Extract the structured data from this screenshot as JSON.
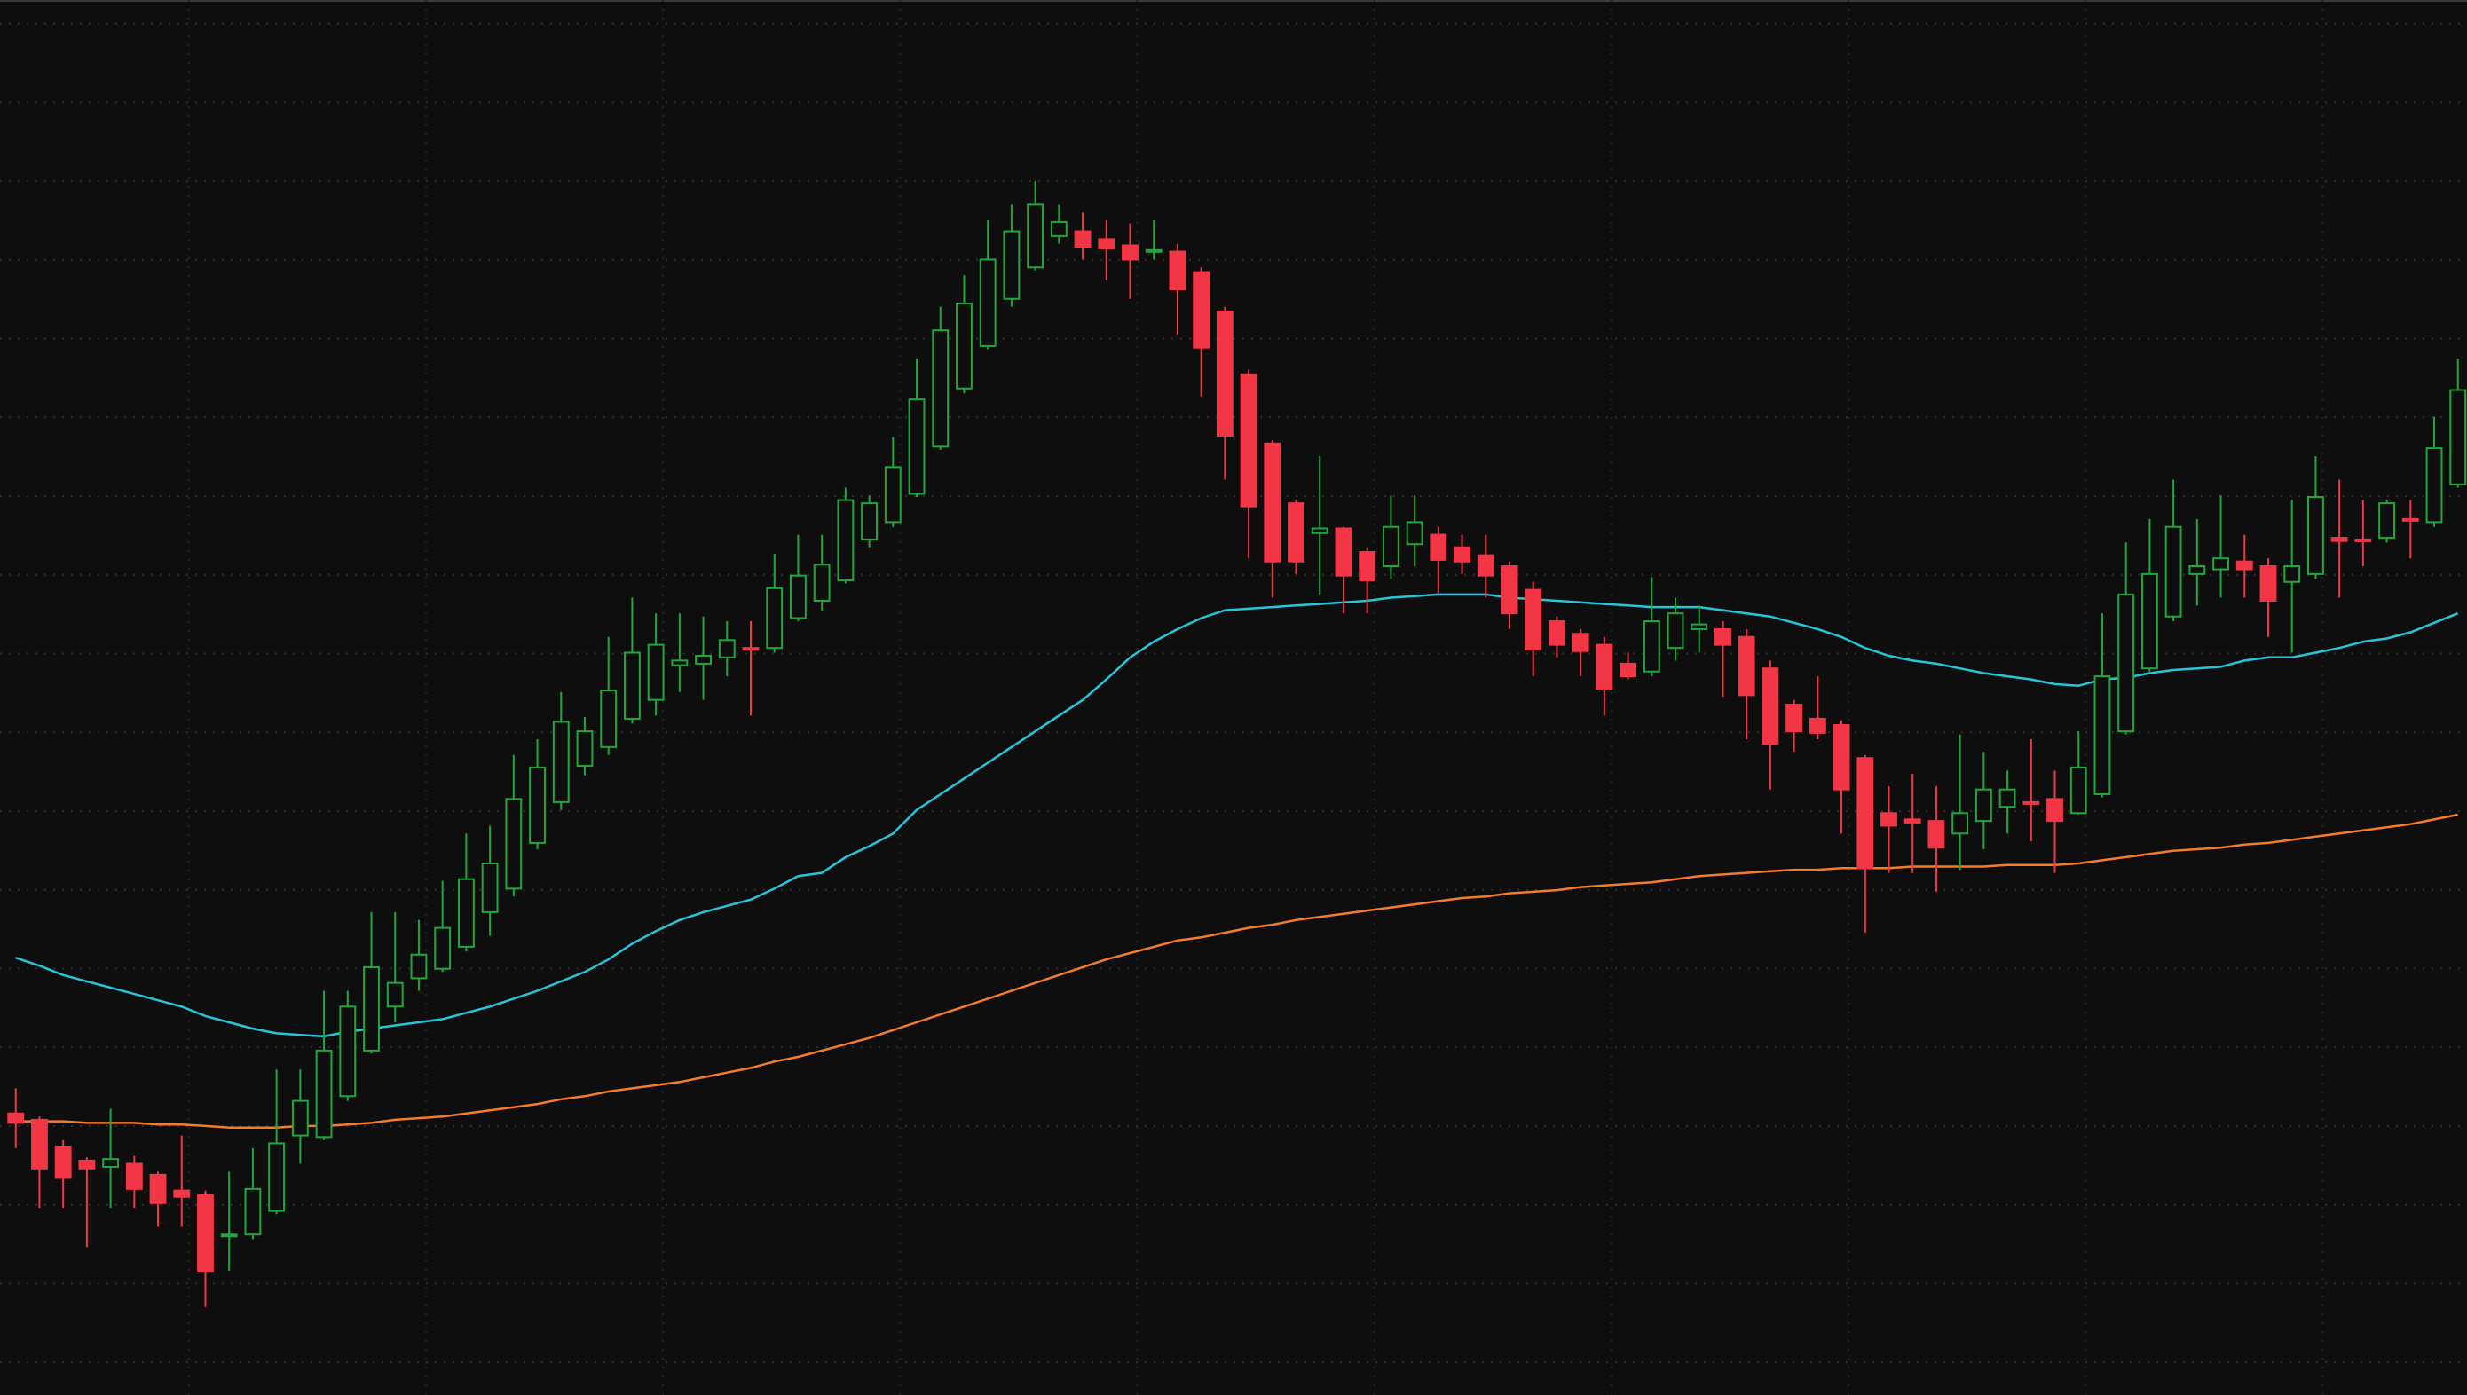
{
  "chart_data": {
    "type": "candlestick",
    "open": [
      179,
      175,
      158,
      149,
      145,
      147,
      140,
      130,
      127,
      101,
      102,
      117,
      165,
      164,
      190,
      219,
      247,
      265,
      271,
      285,
      307,
      322,
      351,
      377,
      400,
      412,
      430,
      442,
      464,
      465,
      469,
      475,
      475,
      494,
      505,
      518,
      544,
      555,
      573,
      603,
      640,
      667,
      697,
      717,
      737,
      740,
      735,
      731,
      727,
      727,
      714,
      689,
      649,
      605,
      567,
      548,
      551,
      536,
      527,
      541,
      547,
      539,
      534,
      527,
      512,
      492,
      484,
      477,
      465,
      460,
      475,
      487,
      487,
      482,
      462,
      439,
      430,
      426,
      405,
      370,
      366,
      365,
      357,
      365,
      374,
      377,
      379,
      370,
      382,
      422,
      462,
      495,
      522,
      525,
      530,
      527,
      517,
      522,
      545,
      544,
      545,
      557,
      555,
      579
    ],
    "high": [
      195,
      177,
      162,
      151,
      182,
      152,
      142,
      165,
      130,
      142,
      157,
      207,
      207,
      257,
      257,
      307,
      307,
      302,
      327,
      357,
      362,
      407,
      417,
      447,
      431,
      482,
      507,
      497,
      497,
      495,
      492,
      492,
      535,
      547,
      547,
      577,
      572,
      609,
      659,
      692,
      712,
      747,
      757,
      772,
      757,
      752,
      747,
      745,
      747,
      732,
      717,
      692,
      652,
      607,
      569,
      597,
      552,
      539,
      572,
      572,
      552,
      547,
      547,
      530,
      517,
      495,
      487,
      482,
      472,
      520,
      507,
      502,
      492,
      487,
      467,
      442,
      457,
      429,
      407,
      387,
      395,
      387,
      420,
      409,
      397,
      417,
      397,
      422,
      497,
      542,
      557,
      582,
      557,
      572,
      547,
      532,
      569,
      597,
      582,
      569,
      569,
      569,
      622,
      659
    ],
    "low": [
      157,
      119,
      119,
      94,
      119,
      119,
      107,
      107,
      56,
      79,
      99,
      115,
      147,
      162,
      187,
      217,
      237,
      257,
      269,
      282,
      292,
      317,
      347,
      372,
      394,
      407,
      427,
      432,
      447,
      442,
      457,
      432,
      472,
      492,
      499,
      516,
      539,
      552,
      571,
      601,
      637,
      665,
      692,
      715,
      732,
      722,
      709,
      697,
      722,
      674,
      635,
      582,
      532,
      507,
      522,
      509,
      497,
      497,
      519,
      527,
      510,
      522,
      507,
      487,
      457,
      469,
      457,
      432,
      455,
      457,
      467,
      472,
      444,
      417,
      385,
      409,
      417,
      357,
      294,
      332,
      332,
      320,
      334,
      347,
      357,
      352,
      332,
      369,
      380,
      420,
      460,
      492,
      502,
      507,
      507,
      482,
      472,
      519,
      507,
      527,
      542,
      532,
      552,
      577
    ],
    "close": [
      173,
      144,
      138,
      144,
      150,
      131,
      122,
      126,
      79,
      102,
      131,
      160,
      187,
      219,
      247,
      272,
      262,
      280,
      297,
      328,
      338,
      379,
      399,
      428,
      422,
      448,
      472,
      477,
      467,
      470,
      480,
      474,
      513,
      521,
      528,
      569,
      567,
      590,
      633,
      677,
      694,
      722,
      740,
      757,
      746,
      730,
      729,
      722,
      728,
      703,
      666,
      610,
      565,
      530,
      530,
      551,
      521,
      518,
      552,
      555,
      531,
      530,
      521,
      497,
      474,
      477,
      473,
      449,
      457,
      492,
      497,
      490,
      477,
      445,
      414,
      422,
      421,
      385,
      335,
      362,
      364,
      348,
      370,
      385,
      385,
      376,
      365,
      399,
      457,
      509,
      522,
      552,
      527,
      532,
      525,
      505,
      527,
      571,
      543,
      543,
      567,
      556,
      602,
      639
    ],
    "up_color": "#1fa83a",
    "down_color": "#f23645",
    "lines": [
      {
        "color": "#26c6da",
        "values": [
          278,
          273,
          267,
          263,
          259,
          255,
          251,
          247,
          241,
          237,
          233,
          230,
          229,
          228,
          231,
          233,
          235,
          237,
          239,
          243,
          247,
          252,
          257,
          263,
          269,
          277,
          287,
          295,
          302,
          307,
          311,
          315,
          322,
          330,
          332,
          342,
          349,
          357,
          372,
          382,
          392,
          402,
          412,
          422,
          432,
          442,
          455,
          469,
          479,
          487,
          494,
          499,
          500,
          501,
          502,
          503,
          504,
          505,
          507,
          508,
          509,
          509,
          509,
          507,
          506,
          505,
          504,
          503,
          502,
          501,
          501,
          501,
          499,
          497,
          495,
          491,
          487,
          482,
          475,
          470,
          467,
          465,
          462,
          459,
          457,
          455,
          452,
          451,
          455,
          456,
          459,
          461,
          462,
          463,
          467,
          469,
          469,
          472,
          475,
          479,
          481,
          485,
          491,
          497
        ]
      },
      {
        "color": "#f57c28",
        "values": [
          174,
          174,
          174,
          173,
          173,
          173,
          172,
          172,
          171,
          170,
          170,
          170,
          171,
          171,
          172,
          173,
          175,
          176,
          177,
          179,
          181,
          183,
          185,
          188,
          190,
          193,
          195,
          197,
          199,
          202,
          205,
          208,
          212,
          215,
          219,
          223,
          227,
          232,
          237,
          242,
          247,
          252,
          257,
          262,
          267,
          272,
          277,
          281,
          285,
          289,
          291,
          294,
          297,
          299,
          302,
          304,
          306,
          308,
          310,
          312,
          314,
          316,
          317,
          319,
          320,
          321,
          323,
          324,
          325,
          326,
          328,
          330,
          331,
          332,
          333,
          334,
          334,
          335,
          335,
          335,
          336,
          336,
          336,
          336,
          337,
          337,
          337,
          338,
          340,
          342,
          344,
          346,
          347,
          348,
          350,
          351,
          353,
          355,
          357,
          359,
          361,
          363,
          366,
          369
        ]
      }
    ],
    "ylim": [
      0,
      887
    ],
    "grid": true
  }
}
